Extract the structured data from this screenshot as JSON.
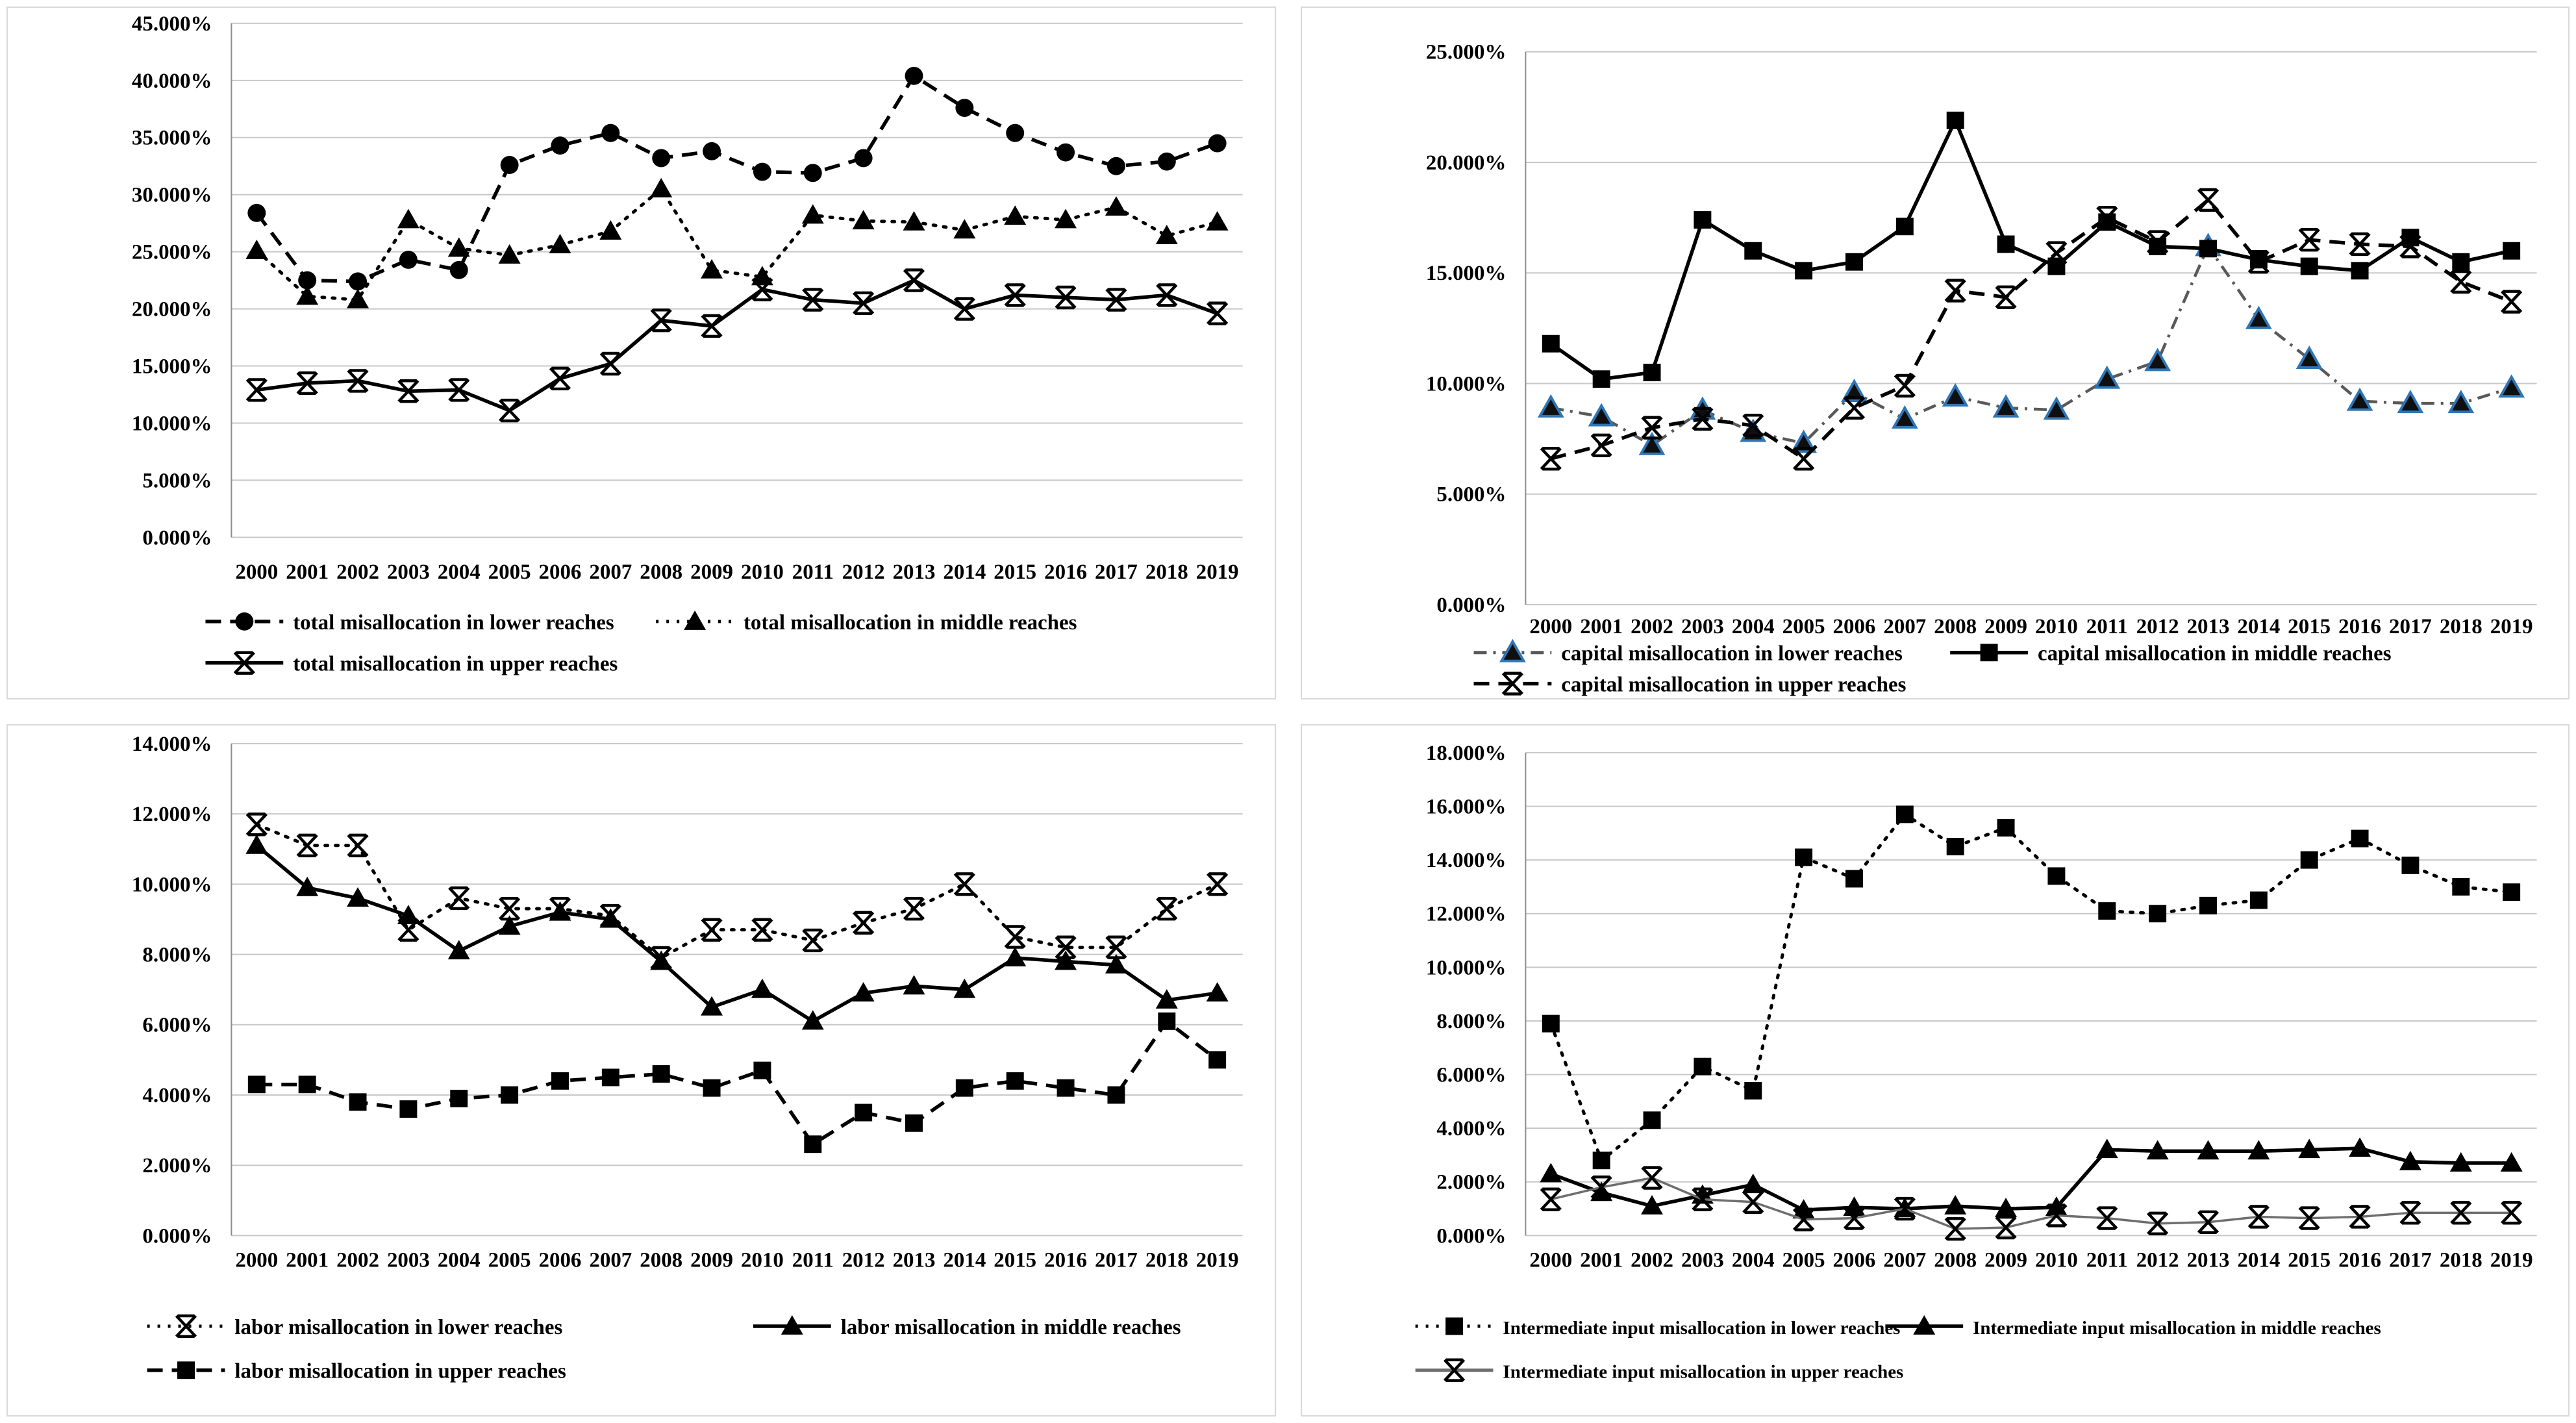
{
  "page": {
    "background": "#ffffff",
    "panel_border": "#d9d9d9",
    "gridline_color": "#c8c8c8",
    "axis_color": "#8c8c8c",
    "text_color": "#000000"
  },
  "chart_data": {
    "type": "line",
    "grid": "horizontal",
    "legend_position": "below",
    "years": [
      "2000",
      "2001",
      "2002",
      "2003",
      "2004",
      "2005",
      "2006",
      "2007",
      "2008",
      "2009",
      "2010",
      "2011",
      "2012",
      "2013",
      "2014",
      "2015",
      "2016",
      "2017",
      "2018",
      "2019"
    ],
    "charts": [
      {
        "id": "total-misallocation",
        "position": "top-left",
        "y_axis": {
          "min": 0,
          "max": 45,
          "step": 5,
          "unit": "%",
          "tick_decimals": 3
        },
        "series": [
          {
            "name": "total misallocation in lower reaches",
            "marker": "circle",
            "line": "dashed",
            "color": "#000000",
            "values": [
              28.4,
              22.5,
              22.4,
              24.3,
              23.4,
              32.6,
              34.3,
              35.4,
              33.2,
              33.8,
              32.0,
              31.9,
              33.2,
              40.4,
              37.6,
              35.4,
              33.7,
              32.5,
              32.9,
              34.5
            ]
          },
          {
            "name": "total misallocation in middle reaches",
            "marker": "triangle",
            "line": "dotted",
            "color": "#000000",
            "values": [
              25.1,
              21.1,
              20.8,
              27.8,
              25.3,
              24.7,
              25.6,
              26.8,
              30.5,
              23.4,
              22.8,
              28.2,
              27.7,
              27.6,
              26.9,
              28.1,
              27.8,
              28.9,
              26.4,
              27.6
            ]
          },
          {
            "name": "total misallocation in upper reaches",
            "marker": "star",
            "line": "solid",
            "color": "#000000",
            "values": [
              12.9,
              13.5,
              13.7,
              12.8,
              12.9,
              11.1,
              13.9,
              15.2,
              19.0,
              18.5,
              21.7,
              20.8,
              20.5,
              22.5,
              20.0,
              21.2,
              21.0,
              20.8,
              21.2,
              19.6
            ]
          }
        ]
      },
      {
        "id": "capital-misallocation",
        "position": "top-right",
        "y_axis": {
          "min": 0,
          "max": 25,
          "step": 5,
          "unit": "%",
          "tick_decimals": 3
        },
        "series": [
          {
            "name": "capital misallocation in lower reaches",
            "marker": "triangle",
            "line": "dash-dot",
            "color": "#595959",
            "marker_fill": "#0f0f0f",
            "marker_stroke": "#2e75b6",
            "values": [
              8.9,
              8.5,
              7.2,
              8.8,
              7.8,
              7.3,
              9.6,
              8.4,
              9.4,
              8.9,
              8.8,
              10.2,
              11.0,
              16.2,
              12.9,
              11.1,
              9.2,
              9.1,
              9.1,
              9.8
            ]
          },
          {
            "name": "capital misallocation in middle reaches",
            "marker": "square",
            "line": "solid",
            "color": "#000000",
            "values": [
              11.8,
              10.2,
              10.5,
              17.4,
              16.0,
              15.1,
              15.5,
              17.1,
              21.9,
              16.3,
              15.3,
              17.3,
              16.2,
              16.1,
              15.6,
              15.3,
              15.1,
              16.6,
              15.5,
              16.0
            ]
          },
          {
            "name": "capital misallocation in upper reaches",
            "marker": "star",
            "line": "dashed",
            "color": "#000000",
            "values": [
              6.6,
              7.2,
              8.0,
              8.4,
              8.1,
              6.6,
              8.9,
              9.9,
              14.2,
              13.9,
              15.9,
              17.5,
              16.4,
              18.3,
              15.5,
              16.5,
              16.3,
              16.2,
              14.6,
              13.7
            ]
          }
        ]
      },
      {
        "id": "labor-misallocation",
        "position": "bottom-left",
        "y_axis": {
          "min": 0,
          "max": 14,
          "step": 2,
          "unit": "%",
          "tick_decimals": 3
        },
        "series": [
          {
            "name": "labor misallocation in lower reaches",
            "marker": "star",
            "line": "dotted",
            "color": "#000000",
            "values": [
              11.7,
              11.1,
              11.1,
              8.7,
              9.6,
              9.3,
              9.3,
              9.1,
              7.9,
              8.7,
              8.7,
              8.4,
              8.9,
              9.3,
              10.0,
              8.5,
              8.2,
              8.2,
              9.3,
              10.0
            ]
          },
          {
            "name": "labor misallocation in middle reaches",
            "marker": "triangle",
            "line": "solid",
            "color": "#000000",
            "values": [
              11.1,
              9.9,
              9.6,
              9.1,
              8.1,
              8.8,
              9.2,
              9.0,
              7.8,
              6.5,
              7.0,
              6.1,
              6.9,
              7.1,
              7.0,
              7.9,
              7.8,
              7.7,
              6.7,
              6.9
            ]
          },
          {
            "name": "labor misallocation in upper reaches",
            "marker": "square",
            "line": "dashed",
            "color": "#000000",
            "values": [
              4.3,
              4.3,
              3.8,
              3.6,
              3.9,
              4.0,
              4.4,
              4.5,
              4.6,
              4.2,
              4.7,
              2.6,
              3.5,
              3.2,
              4.2,
              4.4,
              4.2,
              4.0,
              6.1,
              5.0
            ]
          }
        ]
      },
      {
        "id": "intermediate-input-misallocation",
        "position": "bottom-right",
        "y_axis": {
          "min": 0,
          "max": 18,
          "step": 2,
          "unit": "%",
          "tick_decimals": 3
        },
        "series": [
          {
            "name": "Intermediate input misallocation in lower reaches",
            "marker": "square",
            "line": "dotted",
            "color": "#000000",
            "values": [
              7.9,
              2.8,
              4.3,
              6.3,
              5.4,
              14.1,
              13.3,
              15.7,
              14.5,
              15.2,
              13.4,
              12.1,
              12.0,
              12.3,
              12.5,
              14.0,
              14.8,
              13.8,
              13.0,
              12.8
            ]
          },
          {
            "name": "Intermediate input misallocation in middle reaches",
            "marker": "triangle",
            "line": "solid",
            "color": "#000000",
            "values": [
              2.3,
              1.6,
              1.1,
              1.5,
              1.9,
              0.95,
              1.05,
              1.0,
              1.1,
              1.0,
              1.05,
              3.2,
              3.15,
              3.15,
              3.15,
              3.2,
              3.25,
              2.75,
              2.7,
              2.7
            ]
          },
          {
            "name": "Intermediate input misallocation in upper reaches",
            "marker": "star",
            "line": "solid-thin",
            "color": "#6e6e6e",
            "values": [
              1.35,
              1.8,
              2.15,
              1.35,
              1.25,
              0.6,
              0.65,
              1.0,
              0.25,
              0.3,
              0.75,
              0.65,
              0.45,
              0.5,
              0.7,
              0.65,
              0.7,
              0.85,
              0.85,
              0.85
            ]
          }
        ]
      }
    ]
  }
}
